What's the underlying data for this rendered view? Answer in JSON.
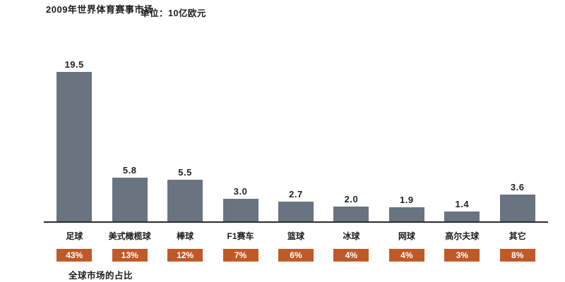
{
  "header": {
    "title": "2009年世界体育赛事市场",
    "unit_label": "单位：10亿欧元"
  },
  "footer": {
    "note": "全球市场的占比"
  },
  "colors": {
    "bar": "#6a7380",
    "percent_box": "#bf5a28",
    "axis": "#2b2b2b",
    "text": "#1c1c1c"
  },
  "chart_data": {
    "type": "bar",
    "title": "2009年世界体育赛事市场",
    "unit": "10亿欧元",
    "categories": [
      "足球",
      "美式橄榄球",
      "棒球",
      "F1赛车",
      "篮球",
      "冰球",
      "网球",
      "高尔夫球",
      "其它"
    ],
    "values": [
      19.5,
      5.8,
      5.5,
      3.0,
      2.7,
      2.0,
      1.9,
      1.4,
      3.6
    ],
    "value_labels": [
      "19.5",
      "5.8",
      "5.5",
      "3.0",
      "2.7",
      "2.0",
      "1.9",
      "1.4",
      "3.6"
    ],
    "percent_labels": [
      "43%",
      "13%",
      "12%",
      "7%",
      "6%",
      "4%",
      "4%",
      "3%",
      "8%"
    ],
    "percent_row_caption": "全球市场的占比",
    "xlabel": "",
    "ylabel": "",
    "ylim": [
      0,
      21
    ],
    "grid": false,
    "legend": false,
    "bar_color": "#6a7380",
    "percent_box_color": "#bf5a28"
  }
}
